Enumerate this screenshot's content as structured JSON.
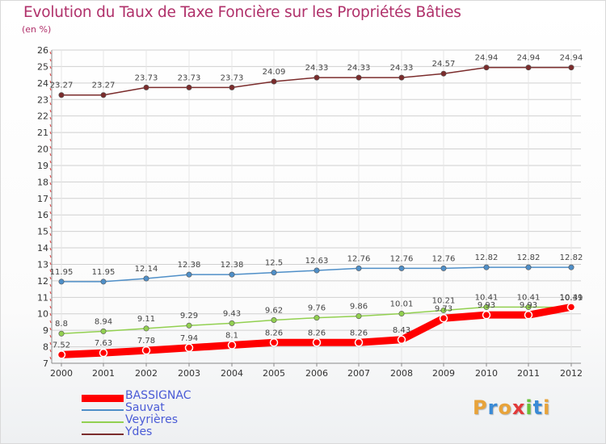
{
  "title": "Evolution du Taux de Taxe Foncière sur les Propriétés Bâties",
  "unit_label": "(en %)",
  "logo": {
    "letters": [
      "P",
      "r",
      "o",
      "x",
      "i",
      "t",
      "i"
    ],
    "colors": [
      "#e8a33a",
      "#3a8ad6",
      "#e8a33a",
      "#e23a3a",
      "#6ac23a",
      "#3a8ad6",
      "#e8a33a"
    ]
  },
  "chart_data": {
    "type": "line",
    "title": "Evolution du Taux de Taxe Foncière sur les Propriétés Bâties",
    "ylabel": "(en %)",
    "x": [
      "2000",
      "2001",
      "2002",
      "2003",
      "2004",
      "2005",
      "2006",
      "2007",
      "2008",
      "2009",
      "2010",
      "2011",
      "2012"
    ],
    "ylim": [
      7,
      26
    ],
    "yticks": [
      7,
      8,
      9,
      10,
      11,
      12,
      13,
      14,
      15,
      16,
      17,
      18,
      19,
      20,
      21,
      22,
      23,
      24,
      25,
      26
    ],
    "grid": true,
    "legend_position": "bottom-left",
    "series": [
      {
        "name": "BASSIGNAC",
        "color": "#ff0000",
        "values": [
          7.52,
          7.63,
          7.78,
          7.94,
          8.1,
          8.26,
          8.26,
          8.26,
          8.43,
          9.73,
          9.93,
          9.93,
          10.41
        ],
        "labels": [
          "7.52",
          "7.63",
          "7.78",
          "7.94",
          "8.1",
          "8.26",
          "8.26",
          "8.26",
          "8.43",
          "9.73",
          "9.93",
          "9.93",
          "10.41"
        ]
      },
      {
        "name": "Sauvat",
        "color": "#4f8fc8",
        "values": [
          11.95,
          11.95,
          12.14,
          12.38,
          12.38,
          12.5,
          12.63,
          12.76,
          12.76,
          12.76,
          12.82,
          12.82,
          12.82
        ],
        "labels": [
          "11.95",
          "11.95",
          "12.14",
          "12.38",
          "12.38",
          "12.5",
          "12.63",
          "12.76",
          "12.76",
          "12.76",
          "12.82",
          "12.82",
          "12.82"
        ]
      },
      {
        "name": "Veyrières",
        "color": "#92d050",
        "values": [
          8.8,
          8.94,
          9.11,
          9.29,
          9.43,
          9.62,
          9.76,
          9.86,
          10.01,
          10.21,
          10.41,
          10.41,
          10.39
        ],
        "labels": [
          "8.8",
          "8.94",
          "9.11",
          "9.29",
          "9.43",
          "9.62",
          "9.76",
          "9.86",
          "10.01",
          "10.21",
          "10.41",
          "10.41",
          "10.39"
        ]
      },
      {
        "name": "Ydes",
        "color": "#7b2c2c",
        "values": [
          23.27,
          23.27,
          23.73,
          23.73,
          23.73,
          24.09,
          24.33,
          24.33,
          24.33,
          24.57,
          24.94,
          24.94,
          24.94
        ],
        "labels": [
          "23.27",
          "23.27",
          "23.73",
          "23.73",
          "23.73",
          "24.09",
          "24.33",
          "24.33",
          "24.33",
          "24.57",
          "24.94",
          "24.94",
          "24.94"
        ]
      }
    ]
  }
}
